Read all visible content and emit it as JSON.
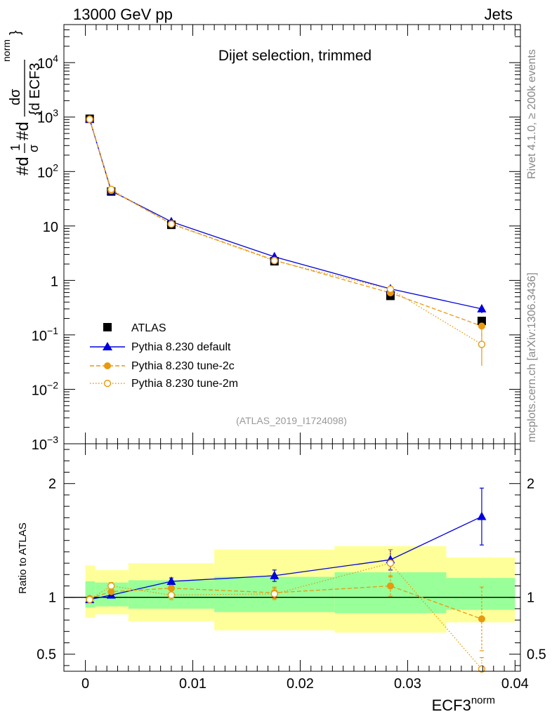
{
  "header": {
    "left": "13000 GeV pp",
    "right": "Jets"
  },
  "side_labels": {
    "rivet": "Rivet 4.1.0, ≥ 200k events",
    "source": "mcplots.cern.ch [arXiv:1306.3436]"
  },
  "colors": {
    "data": "#000000",
    "default": "#0000dd",
    "tune2c": "#e8990f",
    "tune2m": "#e8990f",
    "band_outer": "#ffff99",
    "band_inner": "#99ff99"
  },
  "chart_data": [
    {
      "type": "scatter",
      "title": "Dijet selection, trimmed",
      "ylabel_parts": {
        "prefix": "#d",
        "frac1_num": "1",
        "frac1_den": "σ",
        "mid": "#d",
        "frac2_num": "dσ",
        "frac2_den": "{d ECF3",
        "sup": "norm",
        "close": "}"
      },
      "yscale": "log",
      "ylim": [
        0.001,
        50000
      ],
      "xlim": [
        -0.002,
        0.0405
      ],
      "y_ticks": [
        {
          "v": 0.001,
          "label": "10",
          "sup": "−3"
        },
        {
          "v": 0.01,
          "label": "10",
          "sup": "−2"
        },
        {
          "v": 0.1,
          "label": "10",
          "sup": "−1"
        },
        {
          "v": 1,
          "label": "1",
          "sup": ""
        },
        {
          "v": 10,
          "label": "10",
          "sup": ""
        },
        {
          "v": 100,
          "label": "10",
          "sup": "2"
        },
        {
          "v": 1000,
          "label": "10",
          "sup": "3"
        },
        {
          "v": 10000,
          "label": "10",
          "sup": "4"
        }
      ],
      "watermark": "(ATLAS_2019_I1724098)",
      "legend": [
        "ATLAS",
        "Pythia 8.230 default",
        "Pythia 8.230 tune-2c",
        "Pythia 8.230 tune-2m"
      ],
      "series": [
        {
          "name": "ATLAS",
          "x": [
            0.0004,
            0.0024,
            0.008,
            0.0176,
            0.0284,
            0.0369
          ],
          "y": [
            930,
            43,
            10.5,
            2.25,
            0.52,
            0.18
          ]
        },
        {
          "name": "Pythia 8.230 default",
          "x": [
            0.0004,
            0.0024,
            0.008,
            0.0176,
            0.0284,
            0.0369
          ],
          "y": [
            910,
            44,
            12.0,
            2.72,
            0.7,
            0.3
          ],
          "yerr": [
            0,
            0,
            0,
            0,
            0.05,
            0.05
          ]
        },
        {
          "name": "Pythia 8.230 tune-2c",
          "x": [
            0.0004,
            0.0024,
            0.008,
            0.0176,
            0.0284,
            0.0369
          ],
          "y": [
            920,
            45,
            11.0,
            2.35,
            0.59,
            0.145
          ],
          "yerr": [
            0,
            0,
            0,
            0,
            0.04,
            0.05
          ]
        },
        {
          "name": "Pythia 8.230 tune-2m",
          "x": [
            0.0004,
            0.0024,
            0.008,
            0.0176,
            0.0284,
            0.0369
          ],
          "y": [
            910,
            47,
            10.8,
            2.3,
            0.69,
            0.067
          ],
          "yerr": [
            0,
            0,
            0,
            0,
            0.06,
            0.04
          ]
        }
      ]
    },
    {
      "type": "scatter",
      "ylabel": "Ratio to ATLAS",
      "xlabel": "ECF3",
      "xlabel_sup": "norm",
      "ylim": [
        0.35,
        2.35
      ],
      "xlim": [
        -0.002,
        0.0405
      ],
      "y_ticks": [
        {
          "v": 0.5,
          "label": "0.5"
        },
        {
          "v": 1,
          "label": "1"
        },
        {
          "v": 2,
          "label": "2"
        }
      ],
      "x_ticks": [
        {
          "v": 0,
          "label": "0"
        },
        {
          "v": 0.01,
          "label": "0.01"
        },
        {
          "v": 0.02,
          "label": "0.02"
        },
        {
          "v": 0.03,
          "label": "0.03"
        },
        {
          "v": 0.04,
          "label": "0.04"
        }
      ],
      "bands": [
        {
          "x0": 0.0,
          "x1": 0.0009,
          "inner": [
            0.91,
            1.14
          ],
          "outer": [
            0.82,
            1.28
          ]
        },
        {
          "x0": 0.0009,
          "x1": 0.004,
          "inner": [
            0.92,
            1.13
          ],
          "outer": [
            0.85,
            1.24
          ]
        },
        {
          "x0": 0.004,
          "x1": 0.012,
          "inner": [
            0.9,
            1.15
          ],
          "outer": [
            0.79,
            1.3
          ]
        },
        {
          "x0": 0.012,
          "x1": 0.0232,
          "inner": [
            0.87,
            1.18
          ],
          "outer": [
            0.71,
            1.42
          ]
        },
        {
          "x0": 0.0232,
          "x1": 0.0336,
          "inner": [
            0.86,
            1.22
          ],
          "outer": [
            0.69,
            1.45
          ]
        },
        {
          "x0": 0.0336,
          "x1": 0.04,
          "inner": [
            0.89,
            1.17
          ],
          "outer": [
            0.78,
            1.35
          ]
        }
      ],
      "series": [
        {
          "name": "Pythia 8.230 default",
          "x": [
            0.0004,
            0.0024,
            0.008,
            0.0176,
            0.0284,
            0.0369
          ],
          "y": [
            0.98,
            1.02,
            1.14,
            1.19,
            1.33,
            1.71
          ],
          "yerr": [
            0.02,
            0.02,
            0.03,
            0.05,
            0.09,
            0.25
          ]
        },
        {
          "name": "Pythia 8.230 tune-2c",
          "x": [
            0.0004,
            0.0024,
            0.008,
            0.0176,
            0.0284,
            0.0369
          ],
          "y": [
            0.99,
            1.05,
            1.08,
            1.04,
            1.1,
            0.81
          ],
          "yerr": [
            0.02,
            0.02,
            0.04,
            0.05,
            0.09,
            0.28
          ]
        },
        {
          "name": "Pythia 8.230 tune-2m",
          "x": [
            0.0004,
            0.0024,
            0.008,
            0.0176,
            0.0284,
            0.0369
          ],
          "y": [
            0.98,
            1.1,
            1.02,
            1.03,
            1.3,
            0.37
          ],
          "yerr": [
            0.02,
            0.03,
            0.04,
            0.05,
            0.12,
            0.1
          ]
        }
      ]
    }
  ]
}
